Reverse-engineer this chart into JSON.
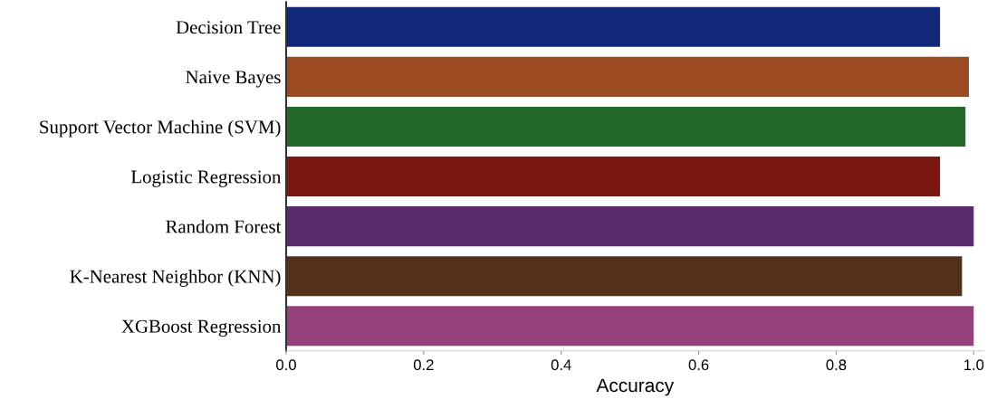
{
  "chart_data": {
    "type": "bar",
    "orientation": "horizontal",
    "xlabel": "Accuracy",
    "categories": [
      "Decision Tree",
      "Naive Bayes",
      "Support Vector Machine (SVM)",
      "Logistic Regression",
      "Random Forest",
      "K-Nearest Neighbor (KNN)",
      "XGBoost Regression"
    ],
    "values": [
      0.951,
      0.993,
      0.988,
      0.951,
      1.0,
      0.983,
      1.0
    ],
    "colors": [
      "#12287a",
      "#9c4a22",
      "#226a2c",
      "#7d1712",
      "#5a2a6e",
      "#54311a",
      "#94417c"
    ],
    "xlim": [
      0,
      1.015
    ],
    "xticks": [
      {
        "value": 0,
        "label": "0.0"
      },
      0.2,
      0.4,
      0.6,
      0.8,
      {
        "value": 1.0,
        "label": "1.0"
      }
    ],
    "grid": false
  }
}
